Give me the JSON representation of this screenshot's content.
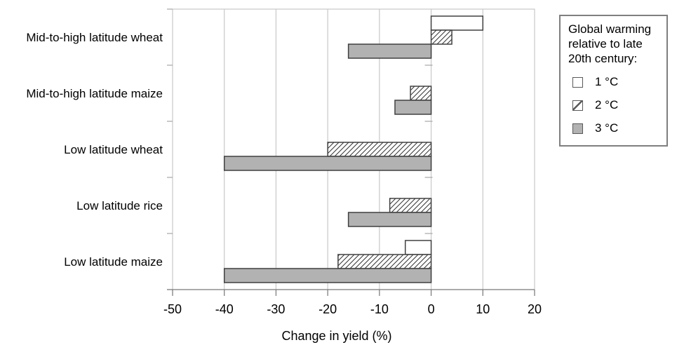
{
  "chart_data": {
    "type": "bar",
    "orientation": "horizontal",
    "title": "",
    "xlabel": "Change in yield (%)",
    "categories": [
      "Mid-to-high latitude wheat",
      "Mid-to-high latitude maize",
      "Low latitude wheat",
      "Low latitude rice",
      "Low latitude maize"
    ],
    "series": [
      {
        "name": "1 °C",
        "style": "white",
        "values": [
          10,
          0,
          0,
          0,
          -5
        ]
      },
      {
        "name": "2 °C",
        "style": "hatched",
        "values": [
          4,
          -4,
          -20,
          -8,
          -18
        ]
      },
      {
        "name": "3 °C",
        "style": "gray",
        "values": [
          -16,
          -7,
          -40,
          -16,
          -40
        ]
      }
    ],
    "xlim": [
      -50,
      20
    ],
    "xticks": [
      -50,
      -40,
      -30,
      -20,
      -10,
      0,
      10,
      20
    ],
    "grid": "vertical-gridlines-on",
    "legend_position": "right"
  },
  "legend": {
    "title_lines": [
      "Global warming",
      "relative to late",
      "20th century:"
    ],
    "entries": [
      {
        "label": "1 °C",
        "swatch": "white-square"
      },
      {
        "label": "2 °C",
        "swatch": "diagonal-hatched-square"
      },
      {
        "label": "3 °C",
        "swatch": "gray-square"
      }
    ]
  },
  "colors": {
    "background": "#ffffff",
    "text": "#000000",
    "gridline": "#c8c8c8",
    "plot_border": "#c8c8c8",
    "axis_line": "#7f7f7f",
    "minor_tick": "#a6a6a6",
    "bar_border": "#404040",
    "bar_gray_fill": "#b2b2b2",
    "bar_white_fill": "#ffffff",
    "hatch_line": "#333333",
    "legend_border": "#7f7f7f"
  }
}
